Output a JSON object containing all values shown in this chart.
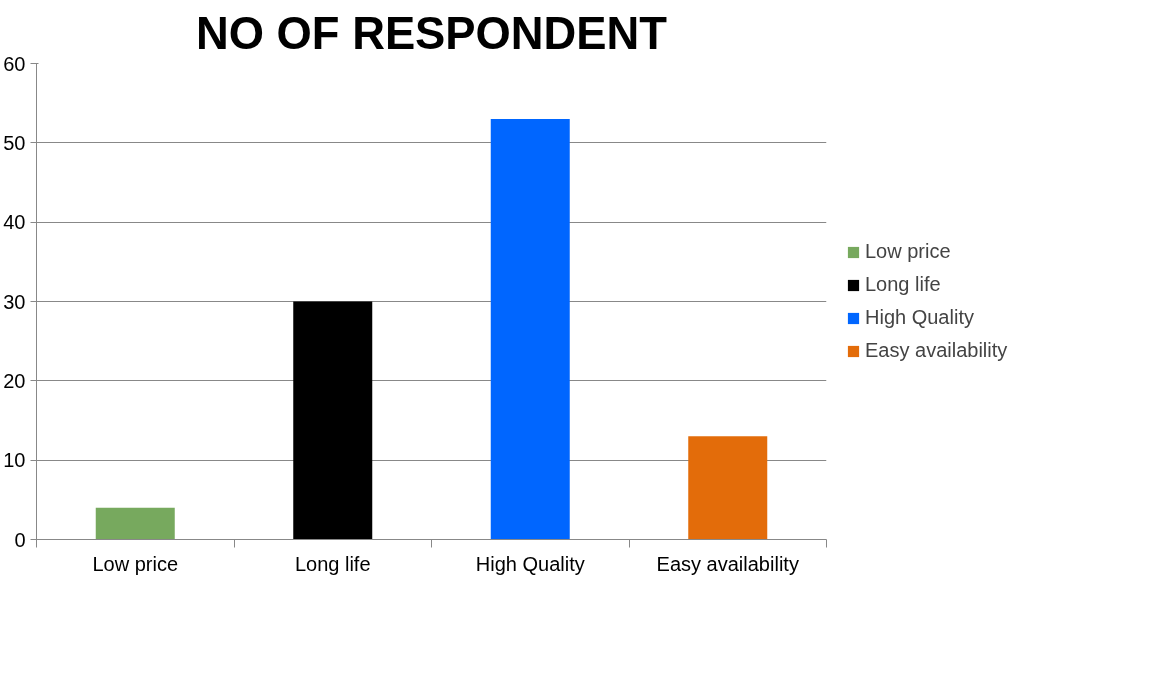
{
  "chart_data": {
    "type": "bar",
    "title": "NO OF RESPONDENT",
    "categories": [
      "Low price",
      "Long life",
      "High Quality",
      "Easy availability"
    ],
    "series": [
      {
        "name": "Low price",
        "color": "#77a95e",
        "values": [
          4,
          null,
          null,
          null
        ]
      },
      {
        "name": "Long life",
        "color": "#000000",
        "values": [
          null,
          30,
          null,
          null
        ]
      },
      {
        "name": "High Quality",
        "color": "#0066ff",
        "values": [
          null,
          null,
          53,
          null
        ]
      },
      {
        "name": "Easy availability",
        "color": "#e36c0a",
        "values": [
          null,
          null,
          null,
          13
        ]
      }
    ],
    "ylim": [
      0,
      60
    ],
    "yticks": [
      0,
      10,
      20,
      30,
      40,
      50,
      60
    ],
    "grid": "y",
    "legend": "right"
  }
}
